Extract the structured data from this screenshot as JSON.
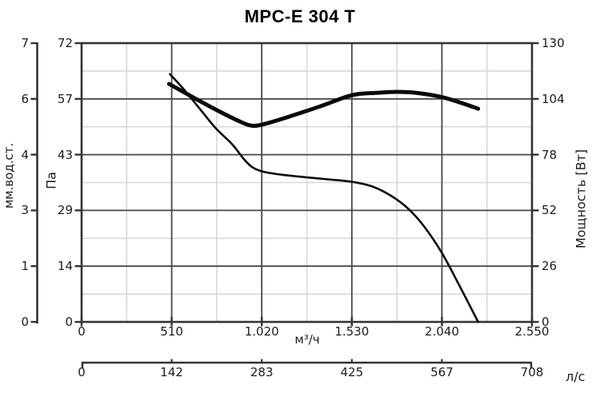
{
  "chart_data": {
    "type": "line",
    "title": "MPC-E 304 T",
    "background": "#ffffff",
    "x_axis_primary": {
      "label": "м³/ч",
      "tick_labels": [
        "0",
        "510",
        "1.020",
        "1.530",
        "2.040",
        "2.550"
      ],
      "min": 0,
      "max": 2550
    },
    "x_axis_secondary": {
      "label": "л/с",
      "tick_labels": [
        "0",
        "142",
        "283",
        "425",
        "567",
        "708"
      ],
      "min": 0,
      "max": 708
    },
    "y_axis_mm": {
      "label": "мм.вод.ст.",
      "tick_labels": [
        "7",
        "6",
        "4",
        "3",
        "1",
        "0"
      ]
    },
    "y_axis_pa": {
      "label": "Па",
      "tick_labels": [
        "72",
        "57",
        "43",
        "29",
        "14",
        "0"
      ],
      "min": 0,
      "max": 72
    },
    "y_axis_power": {
      "label": "Мощность [Вт]",
      "tick_labels": [
        "130",
        "104",
        "78",
        "52",
        "26",
        "0"
      ],
      "min": 0,
      "max": 130
    },
    "grid": {
      "major_divisions": 5,
      "minor_per_major": 2,
      "major_color": "#474747",
      "minor_color": "#d8d8d8",
      "border_color": "#333333",
      "legend": "off"
    },
    "series": [
      {
        "name": "pressure-curve",
        "y_axis": "pa",
        "unit": "Па",
        "color": "#0a0a0a",
        "stroke_width": 2.6,
        "points": [
          [
            500,
            64
          ],
          [
            580,
            60
          ],
          [
            670,
            55
          ],
          [
            760,
            50
          ],
          [
            850,
            46
          ],
          [
            920,
            42
          ],
          [
            965,
            40
          ],
          [
            1020,
            38.9
          ],
          [
            1120,
            38.1
          ],
          [
            1260,
            37.4
          ],
          [
            1400,
            36.8
          ],
          [
            1530,
            36.2
          ],
          [
            1645,
            35
          ],
          [
            1755,
            32.5
          ],
          [
            1850,
            29.2
          ],
          [
            1940,
            24.6
          ],
          [
            2040,
            17.8
          ],
          [
            2140,
            9.3
          ],
          [
            2245,
            0
          ]
        ]
      },
      {
        "name": "power-curve",
        "y_axis": "power",
        "unit": "Вт",
        "color": "#0a0a0a",
        "stroke_width": 5,
        "points": [
          [
            495,
            111
          ],
          [
            625,
            105
          ],
          [
            760,
            99
          ],
          [
            895,
            93.5
          ],
          [
            965,
            91.5
          ],
          [
            1035,
            92.3
          ],
          [
            1170,
            95.6
          ],
          [
            1350,
            100.5
          ],
          [
            1530,
            105.7
          ],
          [
            1665,
            106.8
          ],
          [
            1780,
            107.3
          ],
          [
            1895,
            106.8
          ],
          [
            2030,
            105
          ],
          [
            2140,
            102.4
          ],
          [
            2245,
            99.4
          ]
        ]
      }
    ]
  }
}
